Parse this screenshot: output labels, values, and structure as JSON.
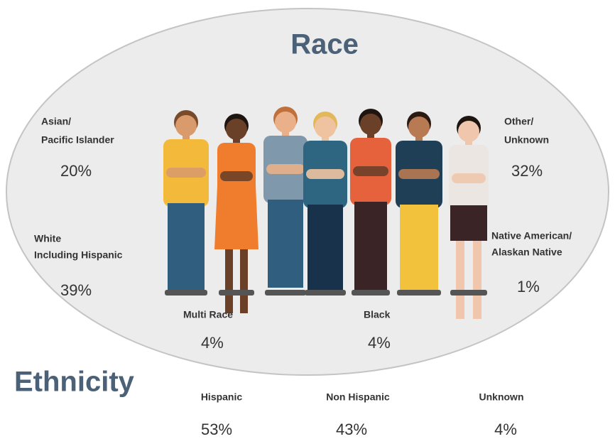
{
  "race": {
    "title": "Race",
    "groups": [
      {
        "label": [
          "Asian/",
          "Pacific Islander"
        ],
        "value": "20%"
      },
      {
        "label": [
          "White",
          "Including Hispanic"
        ],
        "value": "39%"
      },
      {
        "label": [
          "Multi Race"
        ],
        "value": "4%"
      },
      {
        "label": [
          "Black"
        ],
        "value": "4%"
      },
      {
        "label": [
          "Other/",
          "Unknown"
        ],
        "value": "32%"
      },
      {
        "label": [
          "Native American/",
          "Alaskan Native"
        ],
        "value": "1%"
      }
    ]
  },
  "ethnicity": {
    "title": "Ethnicity",
    "groups": [
      {
        "label": "Hispanic",
        "value": "53%"
      },
      {
        "label": "Non Hispanic",
        "value": "43%"
      },
      {
        "label": "Unknown",
        "value": "4%"
      }
    ]
  }
}
